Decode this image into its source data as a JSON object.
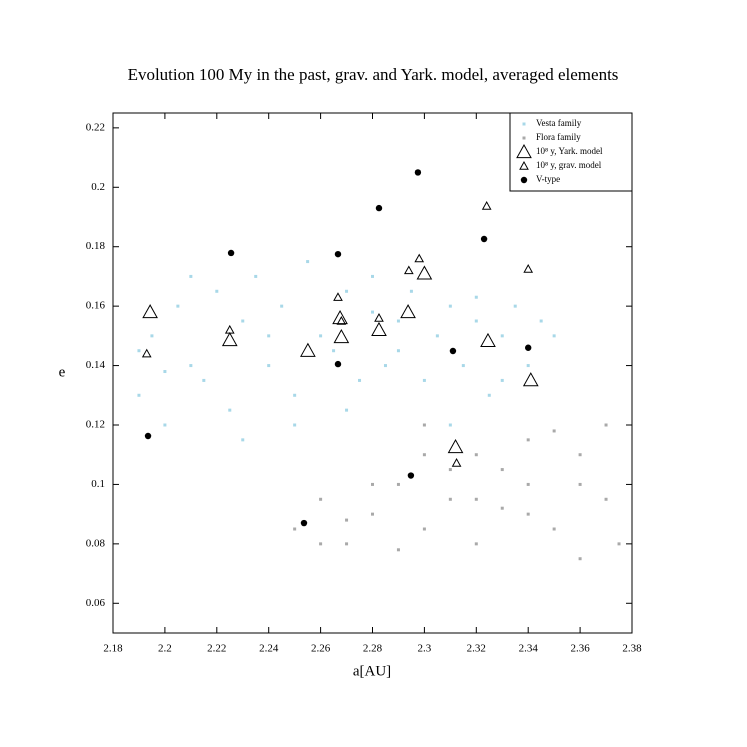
{
  "chart_data": {
    "type": "scatter",
    "title": "Evolution 100 My in the past, grav. and Yark. model, averaged elements",
    "x_label": "a[AU]",
    "y_label": "e",
    "xlim": [
      2.18,
      2.38
    ],
    "ylim": [
      0.05,
      0.225
    ],
    "xticks": [
      2.18,
      2.2,
      2.22,
      2.24,
      2.26,
      2.28,
      2.3,
      2.32,
      2.34,
      2.36,
      2.38
    ],
    "yticks": [
      0.06,
      0.08,
      0.1,
      0.12,
      0.14,
      0.16,
      0.18,
      0.2,
      0.22
    ],
    "legend": "upper right",
    "series": [
      {
        "name": "Vesta family",
        "color": "#a8d8e8",
        "marker": "dot",
        "x": [
          2.19,
          2.195,
          2.2,
          2.205,
          2.21,
          2.215,
          2.22,
          2.225,
          2.23,
          2.235,
          2.24,
          2.245,
          2.25,
          2.255,
          2.26,
          2.265,
          2.27,
          2.275,
          2.28,
          2.285,
          2.29,
          2.295,
          2.3,
          2.305,
          2.31,
          2.315,
          2.32,
          2.325,
          2.33,
          2.335,
          2.34,
          2.345,
          2.35,
          2.19,
          2.21,
          2.23,
          2.25,
          2.27,
          2.29,
          2.31,
          2.33,
          2.2,
          2.24,
          2.28,
          2.32
        ],
        "values": [
          0.13,
          0.15,
          0.12,
          0.16,
          0.14,
          0.135,
          0.165,
          0.125,
          0.155,
          0.17,
          0.14,
          0.16,
          0.13,
          0.175,
          0.15,
          0.145,
          0.165,
          0.135,
          0.17,
          0.14,
          0.155,
          0.165,
          0.135,
          0.15,
          0.16,
          0.14,
          0.155,
          0.13,
          0.15,
          0.16,
          0.14,
          0.155,
          0.15,
          0.145,
          0.17,
          0.115,
          0.12,
          0.125,
          0.145,
          0.12,
          0.135,
          0.138,
          0.15,
          0.158,
          0.163
        ]
      },
      {
        "name": "Flora family",
        "color": "#a9a9a9",
        "marker": "dot",
        "x": [
          2.25,
          2.26,
          2.27,
          2.28,
          2.29,
          2.3,
          2.31,
          2.32,
          2.33,
          2.34,
          2.35,
          2.36,
          2.37,
          2.375,
          2.26,
          2.28,
          2.3,
          2.32,
          2.34,
          2.36,
          2.27,
          2.29,
          2.31,
          2.33,
          2.35,
          2.37,
          2.3,
          2.32,
          2.34,
          2.36
        ],
        "values": [
          0.085,
          0.095,
          0.08,
          0.09,
          0.1,
          0.085,
          0.095,
          0.08,
          0.105,
          0.09,
          0.085,
          0.1,
          0.095,
          0.08,
          0.08,
          0.1,
          0.11,
          0.095,
          0.115,
          0.11,
          0.088,
          0.078,
          0.105,
          0.092,
          0.118,
          0.12,
          0.12,
          0.11,
          0.1,
          0.075
        ]
      },
      {
        "name": "10⁸ y, Yark. model",
        "color": "#000000",
        "marker": "big-triangle",
        "x": [
          2.1943,
          2.225,
          2.2551,
          2.2675,
          2.2825,
          2.2937,
          2.3,
          2.3245,
          2.341,
          2.312,
          2.268
        ],
        "values": [
          0.158,
          0.1486,
          0.145,
          0.156,
          0.152,
          0.158,
          0.171,
          0.1483,
          0.1351,
          0.1126,
          0.1496
        ]
      },
      {
        "name": "10⁸ y, grav. model",
        "color": "#000000",
        "marker": "small-triangle",
        "x": [
          2.193,
          2.225,
          2.2667,
          2.2825,
          2.298,
          2.294,
          2.324,
          2.34,
          2.3124,
          2.268
        ],
        "values": [
          0.144,
          0.152,
          0.163,
          0.156,
          0.176,
          0.172,
          0.1937,
          0.1725,
          0.1072,
          0.155
        ]
      },
      {
        "name": "V-type",
        "color": "#000000",
        "marker": "circle",
        "x": [
          2.2975,
          2.2825,
          2.323,
          2.2255,
          2.2667,
          2.2667,
          2.311,
          2.34,
          2.1935,
          2.2948,
          2.2536
        ],
        "values": [
          0.205,
          0.193,
          0.1826,
          0.1779,
          0.1775,
          0.1405,
          0.1449,
          0.146,
          0.1163,
          0.103,
          0.087
        ]
      }
    ]
  }
}
